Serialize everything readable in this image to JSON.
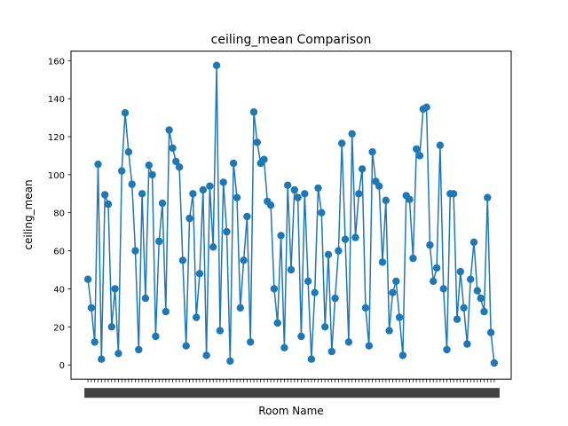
{
  "chart_data": {
    "type": "line",
    "title": "ceiling_mean Comparison",
    "xlabel": "Room Name",
    "ylabel": "ceiling_mean",
    "ylim": [
      -7.5,
      165
    ],
    "yticks": [
      0,
      20,
      40,
      60,
      80,
      100,
      120,
      140,
      160
    ],
    "x_tick_labels_note": "",
    "grid": false,
    "legend": "none",
    "series": [
      {
        "color": "#1f77b4",
        "marker": "circle",
        "points": [
          [
            0.0,
            45
          ],
          [
            0.01,
            30
          ],
          [
            0.02,
            12
          ],
          [
            0.03,
            105.5
          ],
          [
            0.04,
            3
          ],
          [
            0.05,
            89.5
          ],
          [
            0.06,
            84.5
          ],
          [
            0.07,
            20
          ],
          [
            0.08,
            40
          ],
          [
            0.09,
            6
          ],
          [
            0.1,
            102
          ],
          [
            0.11,
            132.5
          ],
          [
            0.12,
            112
          ],
          [
            0.13,
            95
          ],
          [
            0.14,
            60
          ],
          [
            0.15,
            8
          ],
          [
            0.16,
            90
          ],
          [
            0.17,
            35
          ],
          [
            0.18,
            105
          ],
          [
            0.19,
            100
          ],
          [
            0.2,
            15
          ],
          [
            0.21,
            65
          ],
          [
            0.22,
            85
          ],
          [
            0.23,
            28
          ],
          [
            0.24,
            123.5
          ],
          [
            0.25,
            114
          ],
          [
            0.26,
            107
          ],
          [
            0.27,
            104
          ],
          [
            0.28,
            55
          ],
          [
            0.29,
            10
          ],
          [
            0.3,
            77
          ],
          [
            0.31,
            90
          ],
          [
            0.32,
            25
          ],
          [
            0.33,
            48
          ],
          [
            0.34,
            92
          ],
          [
            0.35,
            5
          ],
          [
            0.36,
            94
          ],
          [
            0.37,
            62
          ],
          [
            0.38,
            157.5
          ],
          [
            0.39,
            18
          ],
          [
            0.4,
            96
          ],
          [
            0.41,
            70
          ],
          [
            0.42,
            2
          ],
          [
            0.43,
            106
          ],
          [
            0.44,
            88
          ],
          [
            0.45,
            30
          ],
          [
            0.46,
            55
          ],
          [
            0.47,
            78
          ],
          [
            0.48,
            12
          ],
          [
            0.49,
            133
          ],
          [
            0.5,
            117
          ],
          [
            0.51,
            106
          ],
          [
            0.52,
            108
          ],
          [
            0.53,
            86
          ],
          [
            0.54,
            84
          ],
          [
            0.55,
            40
          ],
          [
            0.56,
            22
          ],
          [
            0.57,
            68
          ],
          [
            0.58,
            9
          ],
          [
            0.59,
            94.5
          ],
          [
            0.6,
            50
          ],
          [
            0.61,
            92
          ],
          [
            0.62,
            88
          ],
          [
            0.63,
            15
          ],
          [
            0.64,
            90
          ],
          [
            0.65,
            44
          ],
          [
            0.66,
            3
          ],
          [
            0.67,
            38
          ],
          [
            0.68,
            93
          ],
          [
            0.69,
            80
          ],
          [
            0.7,
            20
          ],
          [
            0.71,
            58
          ],
          [
            0.72,
            7
          ],
          [
            0.73,
            35
          ],
          [
            0.74,
            60
          ],
          [
            0.75,
            116.5
          ],
          [
            0.76,
            66
          ],
          [
            0.77,
            12
          ],
          [
            0.78,
            121.5
          ],
          [
            0.79,
            67
          ],
          [
            0.8,
            90
          ],
          [
            0.81,
            103
          ],
          [
            0.82,
            30
          ],
          [
            0.83,
            10
          ],
          [
            0.84,
            112
          ],
          [
            0.85,
            96.5
          ],
          [
            0.86,
            94
          ],
          [
            0.87,
            54
          ],
          [
            0.88,
            86.5
          ],
          [
            0.89,
            18
          ],
          [
            0.9,
            38
          ],
          [
            0.91,
            44
          ],
          [
            0.92,
            25
          ],
          [
            0.93,
            5
          ],
          [
            0.94,
            89
          ],
          [
            0.95,
            87
          ],
          [
            0.96,
            56
          ],
          [
            0.97,
            113.5
          ],
          [
            0.98,
            110
          ],
          [
            0.99,
            134.5
          ],
          [
            1.0,
            135.5
          ],
          [
            1.01,
            63
          ],
          [
            1.02,
            44
          ],
          [
            1.03,
            51
          ],
          [
            1.04,
            115.5
          ],
          [
            1.05,
            40
          ],
          [
            1.06,
            8
          ],
          [
            1.07,
            90
          ],
          [
            1.08,
            90
          ],
          [
            1.09,
            24
          ],
          [
            1.1,
            49
          ],
          [
            1.11,
            30
          ],
          [
            1.12,
            11
          ],
          [
            1.13,
            45
          ],
          [
            1.14,
            64.5
          ],
          [
            1.15,
            39
          ],
          [
            1.16,
            35
          ],
          [
            1.17,
            28
          ],
          [
            1.18,
            88
          ],
          [
            1.19,
            17
          ],
          [
            1.2,
            1
          ]
        ]
      }
    ]
  }
}
